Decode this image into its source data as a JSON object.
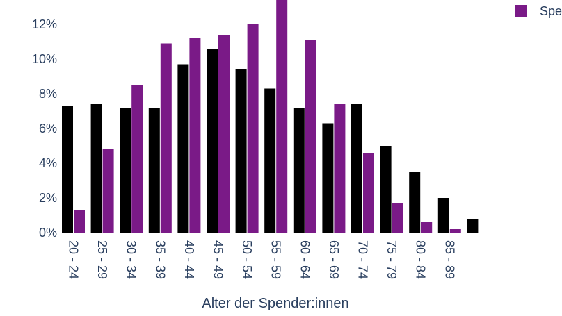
{
  "chart_data": {
    "type": "bar",
    "xlabel": "Alter der Spender:innen",
    "ylabel": "",
    "ylim": [
      0,
      13
    ],
    "y_tick_values": [
      0,
      2,
      4,
      6,
      8,
      10,
      12
    ],
    "y_tick_labels": [
      "0%",
      "2%",
      "4%",
      "6%",
      "8%",
      "10%",
      "12%"
    ],
    "categories": [
      "20 - 24",
      "25 - 29",
      "30 - 34",
      "35 - 39",
      "40 - 44",
      "45 - 49",
      "50 - 54",
      "55 - 59",
      "60 - 64",
      "65 - 69",
      "70 - 74",
      "75 - 79",
      "80 - 84",
      "85 - 89",
      ""
    ],
    "series": [
      {
        "name": "",
        "color": "#000000",
        "values": [
          7.3,
          7.4,
          7.2,
          7.2,
          9.7,
          10.6,
          9.4,
          8.3,
          7.2,
          6.3,
          7.4,
          5.0,
          3.5,
          2.0,
          0.8
        ]
      },
      {
        "name": "Spe",
        "color": "#7a1a87",
        "values": [
          1.3,
          4.8,
          8.5,
          10.9,
          11.2,
          11.4,
          12.0,
          13.5,
          11.1,
          7.4,
          4.6,
          1.7,
          0.6,
          0.2,
          null
        ]
      }
    ],
    "legend_position": "top-right",
    "grid": false
  }
}
